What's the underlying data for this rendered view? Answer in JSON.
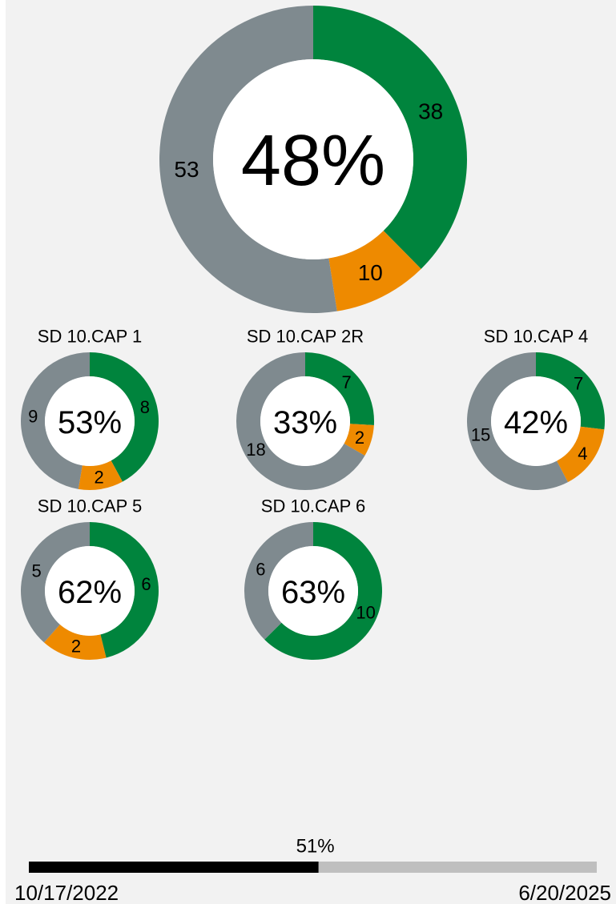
{
  "chart_data": [
    {
      "type": "donut",
      "center_label": "48%",
      "values": [
        38,
        10,
        53
      ],
      "colors": [
        "#00843d",
        "#ee8a00",
        "#7f8a8f"
      ]
    },
    {
      "type": "donut",
      "title": "SD 10.CAP 1",
      "center_label": "53%",
      "values": [
        8,
        2,
        9
      ],
      "colors": [
        "#00843d",
        "#ee8a00",
        "#7f8a8f"
      ]
    },
    {
      "type": "donut",
      "title": "SD 10.CAP 2R",
      "center_label": "33%",
      "values": [
        7,
        2,
        18
      ],
      "colors": [
        "#00843d",
        "#ee8a00",
        "#7f8a8f"
      ]
    },
    {
      "type": "donut",
      "title": "SD 10.CAP 4",
      "center_label": "42%",
      "values": [
        7,
        4,
        15
      ],
      "colors": [
        "#00843d",
        "#ee8a00",
        "#7f8a8f"
      ]
    },
    {
      "type": "donut",
      "title": "SD 10.CAP 5",
      "center_label": "62%",
      "values": [
        6,
        2,
        5
      ],
      "colors": [
        "#00843d",
        "#ee8a00",
        "#7f8a8f"
      ]
    },
    {
      "type": "donut",
      "title": "SD 10.CAP 6",
      "center_label": "63%",
      "values": [
        10,
        6
      ],
      "colors": [
        "#00843d",
        "#7f8a8f"
      ]
    },
    {
      "type": "progress",
      "values": [
        51
      ],
      "value_labels": [
        "51%"
      ],
      "xlim": [
        0,
        100
      ],
      "start_label": "10/17/2022",
      "end_label": "6/20/2025",
      "color": "#000000",
      "track_color": "#bfbfbf"
    }
  ]
}
